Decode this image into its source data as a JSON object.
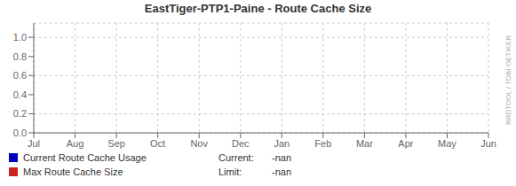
{
  "chart_data": {
    "type": "line",
    "title": "EastTiger-PTP1-Paine - Route Cache Size",
    "categories": [
      "Jul",
      "Aug",
      "Sep",
      "Oct",
      "Nov",
      "Dec",
      "Jan",
      "Feb",
      "Mar",
      "Apr",
      "May",
      "Jun"
    ],
    "series": [
      {
        "name": "Current Route Cache Usage",
        "color": "#0000bb",
        "values": [
          null,
          null,
          null,
          null,
          null,
          null,
          null,
          null,
          null,
          null,
          null,
          null
        ]
      },
      {
        "name": "Max Route Cache Size",
        "color": "#cc2222",
        "values": [
          null,
          null,
          null,
          null,
          null,
          null,
          null,
          null,
          null,
          null,
          null,
          null
        ]
      }
    ],
    "ylim": [
      0.0,
      1.15
    ],
    "yticks": [
      {
        "value": 0.0,
        "label": "0.0"
      },
      0.2,
      0.4,
      0.6,
      0.8,
      {
        "value": 1.0,
        "label": "1.0"
      }
    ],
    "grid": true,
    "legend": "bottom",
    "annotations": [
      "RRDTOOL / TOBI OETIKER",
      "Current:",
      "-nan",
      "Limit:",
      "-nan"
    ]
  }
}
